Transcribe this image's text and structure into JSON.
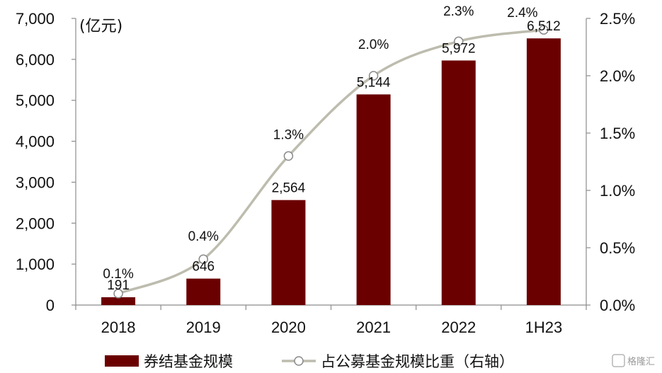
{
  "chart_data": {
    "type": "bar",
    "categories": [
      "2018",
      "2019",
      "2020",
      "2021",
      "2022",
      "1H23"
    ],
    "series": [
      {
        "name": "券结基金规模",
        "type": "bar",
        "axis": "left",
        "color": "#6b0000",
        "values": [
          191,
          646,
          2564,
          5144,
          5972,
          6512
        ],
        "labels": [
          "191",
          "646",
          "2,564",
          "5,144",
          "5,972",
          "6,512"
        ]
      },
      {
        "name": "占公募基金规模比重（右轴）",
        "type": "line",
        "axis": "right",
        "color": "#bdbcae",
        "values": [
          0.1,
          0.4,
          1.3,
          2.0,
          2.3,
          2.4
        ],
        "labels": [
          "0.1%",
          "0.4%",
          "1.3%",
          "2.0%",
          "2.3%",
          "2.4%"
        ]
      }
    ],
    "y_left": {
      "unit": "(亿元)",
      "range": [
        0,
        7000
      ],
      "ticks": [
        "0",
        "1,000",
        "2,000",
        "3,000",
        "4,000",
        "5,000",
        "6,000",
        "7,000"
      ]
    },
    "y_right": {
      "range": [
        0,
        2.5
      ],
      "ticks": [
        "0.0%",
        "0.5%",
        "1.0%",
        "1.5%",
        "2.0%",
        "2.5%"
      ]
    },
    "legend_position": "bottom",
    "grid": false
  },
  "watermark": "格隆汇"
}
